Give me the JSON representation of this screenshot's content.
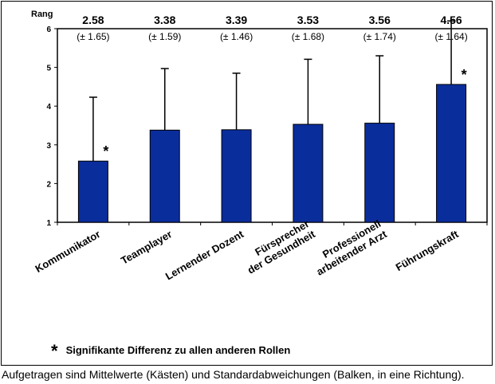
{
  "chart_data": {
    "type": "bar",
    "ylabel": "Rang",
    "ylim": [
      1,
      6
    ],
    "yticks": [
      1,
      2,
      3,
      4,
      5,
      6
    ],
    "categories": [
      [
        "Kommunikator"
      ],
      [
        "Teamplayer"
      ],
      [
        "Lernender Dozent"
      ],
      [
        "Fürsprecher",
        "der Gesundheit"
      ],
      [
        "Professionell",
        "arbeitender Arzt"
      ],
      [
        "Führungskraft"
      ]
    ],
    "values": [
      2.58,
      3.38,
      3.39,
      3.53,
      3.56,
      4.56
    ],
    "sd": [
      1.65,
      1.59,
      1.46,
      1.68,
      1.74,
      1.64
    ],
    "value_labels": [
      "2.58",
      "3.38",
      "3.39",
      "3.53",
      "3.56",
      "4.56"
    ],
    "sd_labels": [
      "(± 1.65)",
      "(± 1.59)",
      "(± 1.46)",
      "(± 1.68)",
      "(± 1.74)",
      "(± 1.64)"
    ],
    "significant": [
      true,
      false,
      false,
      false,
      false,
      true
    ],
    "significance_marker": "*",
    "bar_color": "#0a2d9c",
    "grid": false,
    "legend_note": "Signifikante Differenz zu allen anderen Rollen"
  },
  "caption": "Aufgetragen sind Mittelwerte (Kästen) und Standardabweichungen (Balken, in eine Richtung)."
}
